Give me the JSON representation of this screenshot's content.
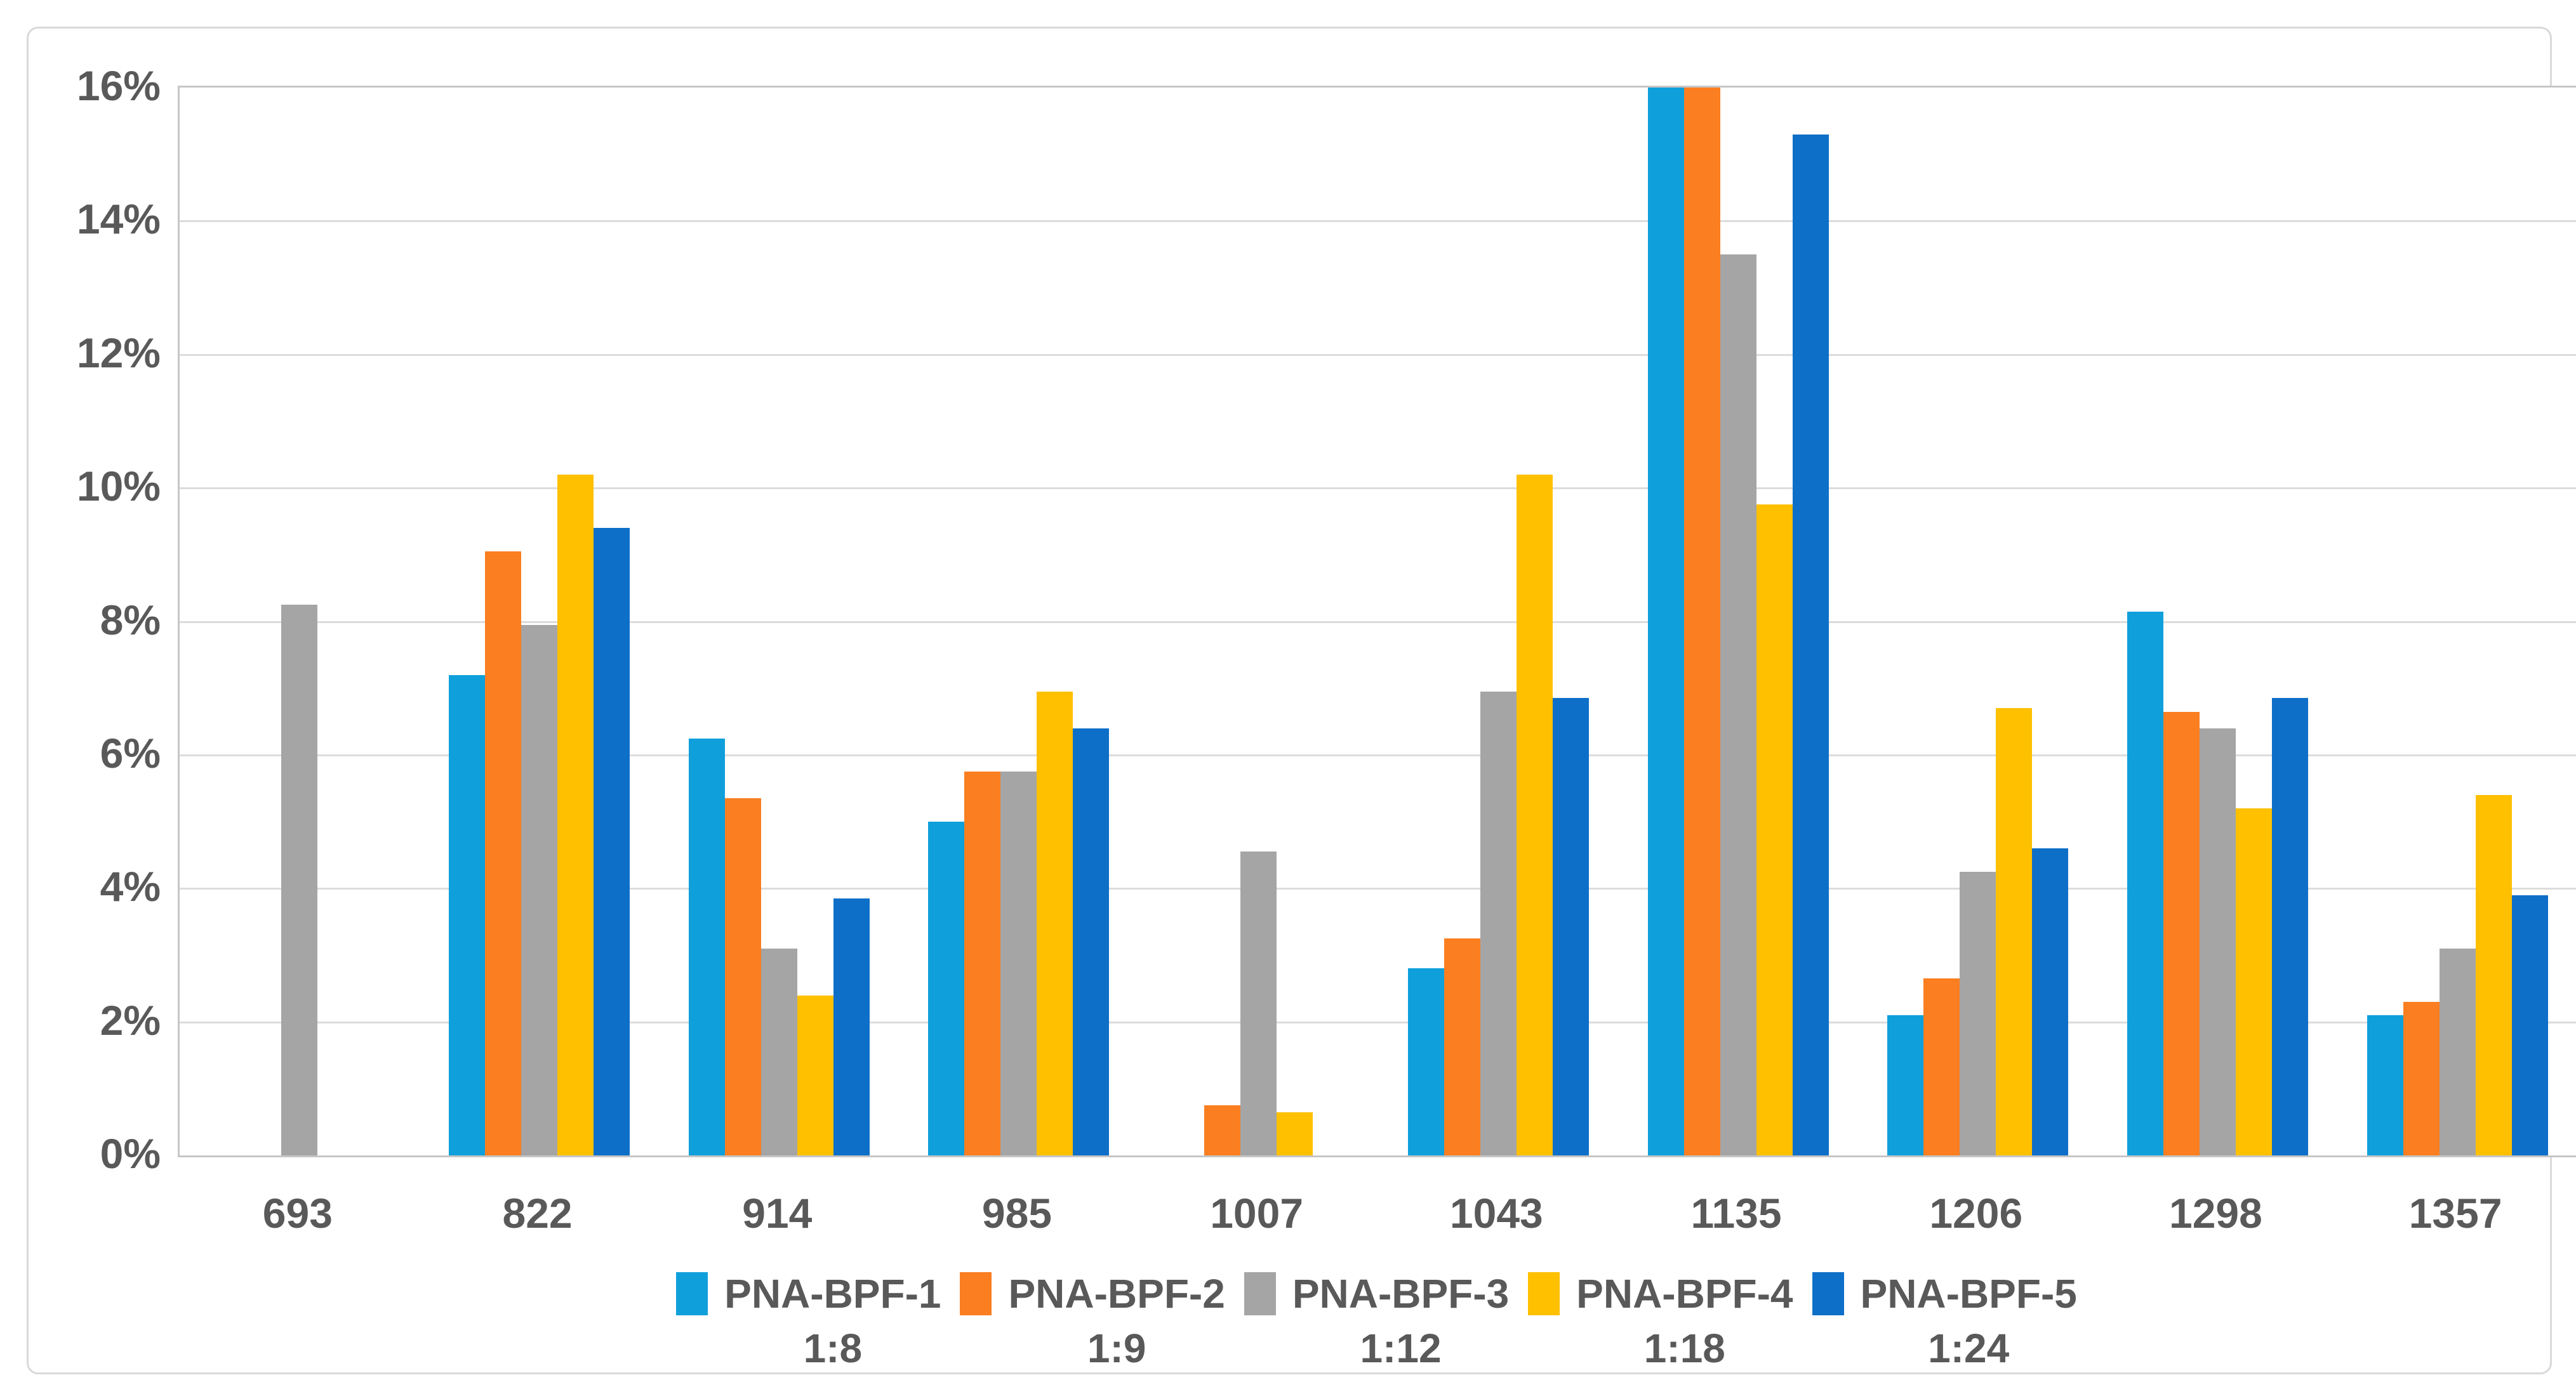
{
  "chart_data": {
    "type": "bar",
    "title": "",
    "xlabel": "",
    "ylabel": "",
    "categories": [
      "693",
      "822",
      "914",
      "985",
      "1007",
      "1043",
      "1135",
      "1206",
      "1298",
      "1357"
    ],
    "series": [
      {
        "name": "PNA-BPF-1",
        "ratio": "1:8",
        "color": "#0FA0DC",
        "values": [
          0,
          7.2,
          6.25,
          5.0,
          0,
          2.8,
          16.0,
          2.1,
          8.15,
          2.1
        ]
      },
      {
        "name": "PNA-BPF-2",
        "ratio": "1:9",
        "color": "#FB7E20",
        "values": [
          0,
          9.05,
          5.35,
          5.75,
          0.75,
          3.25,
          16.0,
          2.65,
          6.65,
          2.3
        ]
      },
      {
        "name": "PNA-BPF-3",
        "ratio": "1:12",
        "color": "#A5A5A5",
        "values": [
          8.25,
          7.95,
          3.1,
          5.75,
          4.55,
          6.95,
          13.5,
          4.25,
          6.4,
          3.1
        ]
      },
      {
        "name": "PNA-BPF-4",
        "ratio": "1:18",
        "color": "#FFC000",
        "values": [
          0,
          10.2,
          2.4,
          6.95,
          0.65,
          10.2,
          9.75,
          6.7,
          5.2,
          5.4
        ]
      },
      {
        "name": "PNA-BPF-5",
        "ratio": "1:24",
        "color": "#0E6FC8",
        "values": [
          0,
          9.4,
          3.85,
          6.4,
          0,
          6.85,
          15.3,
          4.6,
          6.85,
          3.9
        ]
      }
    ],
    "ylim": [
      0,
      16
    ],
    "ytick_step": 2,
    "ytick_labels": [
      "0%",
      "2%",
      "4%",
      "6%",
      "8%",
      "10%",
      "12%",
      "14%",
      "16%"
    ],
    "value_unit": "percent",
    "grid": "horizontal",
    "legend_position": "bottom"
  },
  "style_colors": {
    "axis_text": "#595959",
    "gridline": "#DCDCDC",
    "plot_border": "#C6C6C6",
    "outer_border": "#D9D9D9",
    "background": "#FFFFFF"
  }
}
